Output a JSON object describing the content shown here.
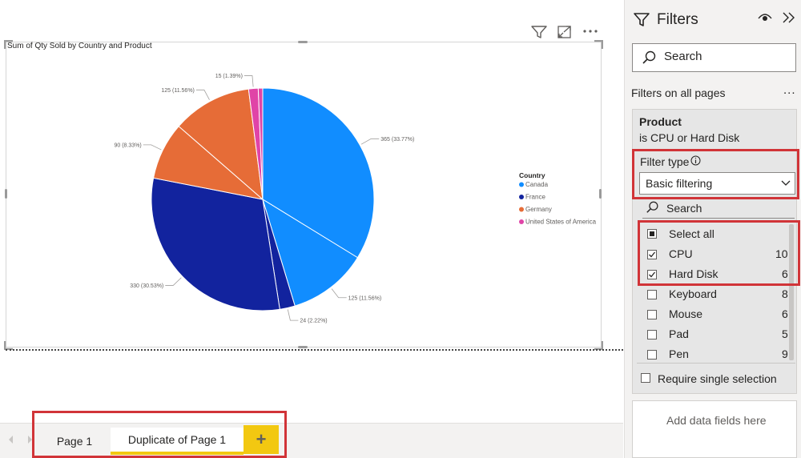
{
  "visual": {
    "title": "Sum of Qty Sold by Country and Product",
    "toolbar_icons": [
      "filter-icon",
      "focus-mode-icon",
      "more-options-icon"
    ]
  },
  "chart_data": {
    "type": "pie",
    "title": "Sum of Qty Sold by Country and Product",
    "legend_title": "Country",
    "legend_position": "right",
    "legend": [
      {
        "name": "Canada",
        "color": "#118DFF"
      },
      {
        "name": "France",
        "color": "#12239E"
      },
      {
        "name": "Germany",
        "color": "#E66C37"
      },
      {
        "name": "United States of America",
        "color": "#E044A7"
      }
    ],
    "slices": [
      {
        "country": "Canada",
        "value": 365,
        "label": "365 (33.77%)",
        "color": "#118DFF"
      },
      {
        "country": "Canada",
        "value": 125,
        "label": "125 (11.56%)",
        "color": "#118DFF"
      },
      {
        "country": "France",
        "value": 24,
        "label": "24 (2.22%)",
        "color": "#12239E"
      },
      {
        "country": "France",
        "value": 330,
        "label": "330 (30.53%)",
        "color": "#12239E"
      },
      {
        "country": "Germany",
        "value": 90,
        "label": "90 (8.33%)",
        "color": "#E66C37"
      },
      {
        "country": "Germany",
        "value": 125,
        "label": "125 (11.56%)",
        "color": "#E66C37"
      },
      {
        "country": "United States of America",
        "value": 15,
        "label": "15 (1.39%)",
        "color": "#E044A7"
      },
      {
        "country": "United States of America",
        "value": 7,
        "label": "",
        "color": "#E044A7"
      }
    ]
  },
  "tabs": {
    "page1": "Page 1",
    "duplicate": "Duplicate of Page 1",
    "add": "+"
  },
  "filters": {
    "title": "Filters",
    "search_placeholder": "Search",
    "section_label": "Filters on all pages",
    "more": "...",
    "card": {
      "field": "Product",
      "summary": "is CPU or Hard Disk",
      "filter_type_label": "Filter type",
      "filter_type_value": "Basic filtering",
      "search_placeholder": "Search",
      "select_all": "Select all",
      "items": [
        {
          "label": "CPU",
          "count": "10",
          "checked": true
        },
        {
          "label": "Hard Disk",
          "count": "6",
          "checked": true
        },
        {
          "label": "Keyboard",
          "count": "8",
          "checked": false
        },
        {
          "label": "Mouse",
          "count": "6",
          "checked": false
        },
        {
          "label": "Pad",
          "count": "5",
          "checked": false
        },
        {
          "label": "Pen",
          "count": "9",
          "checked": false
        }
      ],
      "require_single": "Require single selection"
    },
    "add_fields": "Add data fields here"
  }
}
